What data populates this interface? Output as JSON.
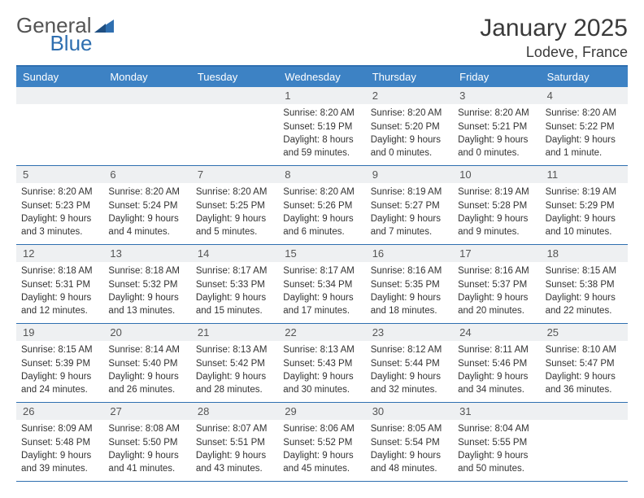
{
  "logo": {
    "text1": "General",
    "text2": "Blue"
  },
  "title": "January 2025",
  "location": "Lodeve, France",
  "colors": {
    "header_bg": "#3d82c4",
    "border": "#2f6fb0",
    "daynum_bg": "#eef0f2",
    "text": "#333333",
    "title_text": "#3a3a3a",
    "logo_gray": "#545454",
    "logo_blue": "#2f6fb0"
  },
  "day_names": [
    "Sunday",
    "Monday",
    "Tuesday",
    "Wednesday",
    "Thursday",
    "Friday",
    "Saturday"
  ],
  "weeks": [
    [
      null,
      null,
      null,
      {
        "n": "1",
        "sunrise": "8:20 AM",
        "sunset": "5:19 PM",
        "daylight": "8 hours and 59 minutes."
      },
      {
        "n": "2",
        "sunrise": "8:20 AM",
        "sunset": "5:20 PM",
        "daylight": "9 hours and 0 minutes."
      },
      {
        "n": "3",
        "sunrise": "8:20 AM",
        "sunset": "5:21 PM",
        "daylight": "9 hours and 0 minutes."
      },
      {
        "n": "4",
        "sunrise": "8:20 AM",
        "sunset": "5:22 PM",
        "daylight": "9 hours and 1 minute."
      }
    ],
    [
      {
        "n": "5",
        "sunrise": "8:20 AM",
        "sunset": "5:23 PM",
        "daylight": "9 hours and 3 minutes."
      },
      {
        "n": "6",
        "sunrise": "8:20 AM",
        "sunset": "5:24 PM",
        "daylight": "9 hours and 4 minutes."
      },
      {
        "n": "7",
        "sunrise": "8:20 AM",
        "sunset": "5:25 PM",
        "daylight": "9 hours and 5 minutes."
      },
      {
        "n": "8",
        "sunrise": "8:20 AM",
        "sunset": "5:26 PM",
        "daylight": "9 hours and 6 minutes."
      },
      {
        "n": "9",
        "sunrise": "8:19 AM",
        "sunset": "5:27 PM",
        "daylight": "9 hours and 7 minutes."
      },
      {
        "n": "10",
        "sunrise": "8:19 AM",
        "sunset": "5:28 PM",
        "daylight": "9 hours and 9 minutes."
      },
      {
        "n": "11",
        "sunrise": "8:19 AM",
        "sunset": "5:29 PM",
        "daylight": "9 hours and 10 minutes."
      }
    ],
    [
      {
        "n": "12",
        "sunrise": "8:18 AM",
        "sunset": "5:31 PM",
        "daylight": "9 hours and 12 minutes."
      },
      {
        "n": "13",
        "sunrise": "8:18 AM",
        "sunset": "5:32 PM",
        "daylight": "9 hours and 13 minutes."
      },
      {
        "n": "14",
        "sunrise": "8:17 AM",
        "sunset": "5:33 PM",
        "daylight": "9 hours and 15 minutes."
      },
      {
        "n": "15",
        "sunrise": "8:17 AM",
        "sunset": "5:34 PM",
        "daylight": "9 hours and 17 minutes."
      },
      {
        "n": "16",
        "sunrise": "8:16 AM",
        "sunset": "5:35 PM",
        "daylight": "9 hours and 18 minutes."
      },
      {
        "n": "17",
        "sunrise": "8:16 AM",
        "sunset": "5:37 PM",
        "daylight": "9 hours and 20 minutes."
      },
      {
        "n": "18",
        "sunrise": "8:15 AM",
        "sunset": "5:38 PM",
        "daylight": "9 hours and 22 minutes."
      }
    ],
    [
      {
        "n": "19",
        "sunrise": "8:15 AM",
        "sunset": "5:39 PM",
        "daylight": "9 hours and 24 minutes."
      },
      {
        "n": "20",
        "sunrise": "8:14 AM",
        "sunset": "5:40 PM",
        "daylight": "9 hours and 26 minutes."
      },
      {
        "n": "21",
        "sunrise": "8:13 AM",
        "sunset": "5:42 PM",
        "daylight": "9 hours and 28 minutes."
      },
      {
        "n": "22",
        "sunrise": "8:13 AM",
        "sunset": "5:43 PM",
        "daylight": "9 hours and 30 minutes."
      },
      {
        "n": "23",
        "sunrise": "8:12 AM",
        "sunset": "5:44 PM",
        "daylight": "9 hours and 32 minutes."
      },
      {
        "n": "24",
        "sunrise": "8:11 AM",
        "sunset": "5:46 PM",
        "daylight": "9 hours and 34 minutes."
      },
      {
        "n": "25",
        "sunrise": "8:10 AM",
        "sunset": "5:47 PM",
        "daylight": "9 hours and 36 minutes."
      }
    ],
    [
      {
        "n": "26",
        "sunrise": "8:09 AM",
        "sunset": "5:48 PM",
        "daylight": "9 hours and 39 minutes."
      },
      {
        "n": "27",
        "sunrise": "8:08 AM",
        "sunset": "5:50 PM",
        "daylight": "9 hours and 41 minutes."
      },
      {
        "n": "28",
        "sunrise": "8:07 AM",
        "sunset": "5:51 PM",
        "daylight": "9 hours and 43 minutes."
      },
      {
        "n": "29",
        "sunrise": "8:06 AM",
        "sunset": "5:52 PM",
        "daylight": "9 hours and 45 minutes."
      },
      {
        "n": "30",
        "sunrise": "8:05 AM",
        "sunset": "5:54 PM",
        "daylight": "9 hours and 48 minutes."
      },
      {
        "n": "31",
        "sunrise": "8:04 AM",
        "sunset": "5:55 PM",
        "daylight": "9 hours and 50 minutes."
      },
      null
    ]
  ],
  "labels": {
    "sunrise": "Sunrise: ",
    "sunset": "Sunset: ",
    "daylight": "Daylight: "
  }
}
